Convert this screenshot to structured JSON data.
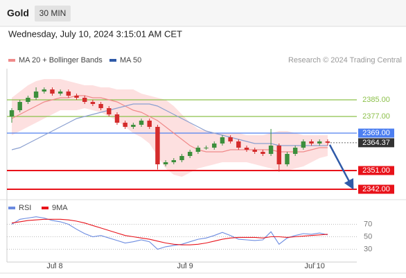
{
  "header": {
    "symbol": "Gold",
    "interval": "30 MIN",
    "timestamp": "Wednesday, July 10, 2024 3:15:01 AM CET",
    "copyright": "Research © 2024 Trading Central"
  },
  "chart_data": [
    {
      "type": "candlestick",
      "x": [
        0,
        1,
        2,
        3,
        4,
        5,
        6,
        7,
        8,
        9,
        10,
        11,
        12,
        13,
        14,
        15,
        16,
        17,
        18,
        19,
        20,
        21,
        22,
        23,
        24,
        25,
        26,
        27,
        28,
        29,
        30,
        31,
        32,
        33,
        34,
        35,
        36,
        37,
        38,
        39
      ],
      "open": [
        2377,
        2380,
        2384,
        2386,
        2389,
        2390,
        2388,
        2389,
        2387,
        2386,
        2384,
        2383,
        2381,
        2378,
        2374,
        2372,
        2373,
        2375,
        2372,
        2354,
        2355,
        2356,
        2358,
        2360,
        2362,
        2362,
        2364,
        2367,
        2365,
        2362,
        2361,
        2360,
        2359,
        2363,
        2354,
        2359,
        2362,
        2365,
        2364,
        2365
      ],
      "high": [
        2381,
        2385,
        2387,
        2391,
        2391,
        2391,
        2390,
        2390,
        2388,
        2387,
        2385,
        2384,
        2382,
        2379,
        2375,
        2374,
        2376,
        2376,
        2373,
        2356,
        2357,
        2359,
        2361,
        2363,
        2363,
        2365,
        2368,
        2368,
        2366,
        2363,
        2362,
        2361,
        2371,
        2364,
        2360,
        2363,
        2366,
        2366,
        2366,
        2366
      ],
      "low": [
        2374,
        2379,
        2383,
        2385,
        2388,
        2387,
        2387,
        2386,
        2385,
        2383,
        2382,
        2380,
        2377,
        2373,
        2371,
        2371,
        2372,
        2371,
        2351.5,
        2353,
        2354,
        2355,
        2357,
        2359,
        2361,
        2361,
        2363,
        2364,
        2361,
        2360,
        2359,
        2358,
        2358,
        2350.5,
        2353,
        2358,
        2361,
        2363,
        2363,
        2363
      ],
      "close": [
        2380,
        2384,
        2386,
        2389,
        2390,
        2388,
        2389,
        2387,
        2386,
        2384,
        2383,
        2381,
        2378,
        2374,
        2372,
        2373,
        2375,
        2372,
        2354,
        2355,
        2356,
        2358,
        2360,
        2362,
        2362,
        2364,
        2367,
        2365,
        2362,
        2361,
        2360,
        2359,
        2363,
        2354,
        2359,
        2362,
        2365,
        2364,
        2365,
        2364.37
      ],
      "up_color": "#3c8f3c",
      "down_color": "#d42c2c",
      "overlays": [
        {
          "name": "MA 20 + Bollinger Bands",
          "color": "#f08a8a",
          "band_color": "#fde0e0",
          "values": [
            2376,
            2378,
            2380,
            2382,
            2384,
            2385,
            2386,
            2386,
            2387,
            2387,
            2386,
            2386,
            2385,
            2384,
            2382,
            2380,
            2379,
            2377,
            2375,
            2372,
            2369,
            2366,
            2363,
            2361,
            2360,
            2360,
            2360,
            2361,
            2361,
            2361,
            2361,
            2361,
            2361,
            2360,
            2360,
            2360,
            2360,
            2361,
            2362,
            2362
          ],
          "upper": [
            2386,
            2389,
            2392,
            2394,
            2395,
            2395,
            2395,
            2394,
            2393,
            2392,
            2392,
            2391,
            2391,
            2390,
            2390,
            2390,
            2388,
            2387,
            2386,
            2385,
            2382,
            2378,
            2374,
            2371,
            2370,
            2369,
            2369,
            2369,
            2369,
            2368,
            2368,
            2368,
            2369,
            2370,
            2370,
            2369,
            2368,
            2368,
            2368,
            2368
          ],
          "lower": [
            2368,
            2370,
            2372,
            2374,
            2376,
            2378,
            2380,
            2380,
            2380,
            2381,
            2380,
            2379,
            2377,
            2375,
            2372,
            2369,
            2367,
            2364,
            2358,
            2352,
            2349,
            2348,
            2350,
            2352,
            2353,
            2354,
            2355,
            2355,
            2355,
            2355,
            2354,
            2353,
            2352,
            2351,
            2351,
            2352,
            2353,
            2355,
            2357,
            2358
          ]
        },
        {
          "name": "MA 50",
          "color": "#8a9fd0",
          "legend_color": "#2f5aa8",
          "values": [
            2361,
            2362,
            2364,
            2366,
            2368,
            2370,
            2372,
            2374,
            2376,
            2377,
            2378,
            2379,
            2380,
            2381,
            2382,
            2383,
            2383,
            2383,
            2382,
            2380,
            2378,
            2376,
            2374,
            2372,
            2370,
            2369,
            2368,
            2367,
            2366,
            2365,
            2364,
            2364,
            2364,
            2363,
            2363,
            2363,
            2363,
            2363,
            2363,
            2363
          ]
        }
      ],
      "levels": [
        {
          "value": 2385,
          "label": "2385.00",
          "color": "#8cc04a",
          "box": false
        },
        {
          "value": 2377,
          "label": "2377.00",
          "color": "#8cc04a",
          "box": false
        },
        {
          "value": 2369,
          "label": "2369.00",
          "color": "#4d7ff0",
          "box": true
        },
        {
          "value": 2364.37,
          "label": "2364.37",
          "color": "#333333",
          "box": true,
          "dash": true
        },
        {
          "value": 2351,
          "label": "2351.00",
          "color": "#e8121a",
          "box": true
        },
        {
          "value": 2342,
          "label": "2342.00",
          "color": "#e8121a",
          "box": true
        }
      ],
      "arrow_color": "#2f5aa8",
      "xlim": [
        -0.6,
        42.6
      ],
      "ylim": [
        2338,
        2400
      ]
    },
    {
      "type": "line",
      "x": [
        0,
        1,
        2,
        3,
        4,
        5,
        6,
        7,
        8,
        9,
        10,
        11,
        12,
        13,
        14,
        15,
        16,
        17,
        18,
        19,
        20,
        21,
        22,
        23,
        24,
        25,
        26,
        27,
        28,
        29,
        30,
        31,
        32,
        33,
        34,
        35,
        36,
        37,
        38,
        39
      ],
      "series": [
        {
          "name": "RSI",
          "color": "#6b8be0",
          "values": [
            70,
            78,
            80,
            82,
            80,
            76,
            74,
            70,
            62,
            55,
            50,
            52,
            48,
            44,
            40,
            42,
            45,
            42,
            30,
            34,
            36,
            38,
            42,
            46,
            48,
            52,
            57,
            52,
            46,
            45,
            44,
            45,
            58,
            38,
            48,
            52,
            55,
            54,
            56,
            53
          ]
        },
        {
          "name": "9MA",
          "color": "#e8121a",
          "values": [
            72,
            74,
            76,
            77,
            78,
            78,
            78,
            77,
            75,
            72,
            68,
            64,
            60,
            56,
            52,
            50,
            48,
            46,
            43,
            40,
            38,
            37,
            37,
            38,
            40,
            43,
            46,
            48,
            49,
            49,
            49,
            48,
            50,
            50,
            49,
            50,
            51,
            52,
            53,
            54
          ]
        }
      ],
      "xlim": [
        -0.6,
        42.6
      ],
      "xticks": [
        {
          "value": 5.3,
          "label": "Jul 8"
        },
        {
          "value": 21.4,
          "label": "Jul 9"
        },
        {
          "value": 37.4,
          "label": "Jul 10"
        }
      ],
      "ylim": [
        10,
        85
      ],
      "yticks": [
        70,
        50,
        30
      ],
      "grid": true
    }
  ]
}
